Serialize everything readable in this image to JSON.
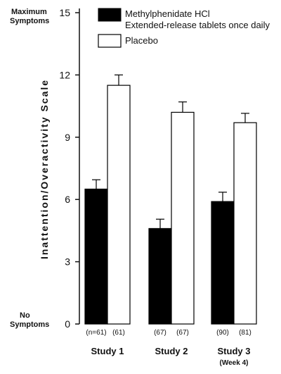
{
  "chart_data": {
    "type": "bar",
    "ylabel": "Inattention/Overactivity Scale",
    "ylim": [
      0,
      15
    ],
    "yticks": [
      "0",
      "3",
      "6",
      "9",
      "12",
      "15"
    ],
    "y_top_label": [
      "Maximum",
      "Symptoms"
    ],
    "y_bottom_label": [
      "No",
      "Symptoms"
    ],
    "categories": [
      {
        "label": "Study 1",
        "sublabel": "",
        "n": [
          "(n=61)",
          "(61)"
        ]
      },
      {
        "label": "Study 2",
        "sublabel": "",
        "n": [
          "(67)",
          "(67)"
        ]
      },
      {
        "label": "Study 3",
        "sublabel": "(Week 4)",
        "n": [
          "(90)",
          "(81)"
        ]
      }
    ],
    "series": [
      {
        "name": "Methylphenidate HCl",
        "name_line2": "Extended-release tablets once daily",
        "color": "#000000",
        "values": [
          6.5,
          4.6,
          5.9
        ],
        "error": [
          0.45,
          0.45,
          0.45
        ]
      },
      {
        "name": "Placebo",
        "name_line2": "",
        "color": "#ffffff",
        "values": [
          11.5,
          10.2,
          9.7
        ],
        "error": [
          0.5,
          0.5,
          0.45
        ]
      }
    ],
    "legend_position": "top",
    "grid": false
  }
}
